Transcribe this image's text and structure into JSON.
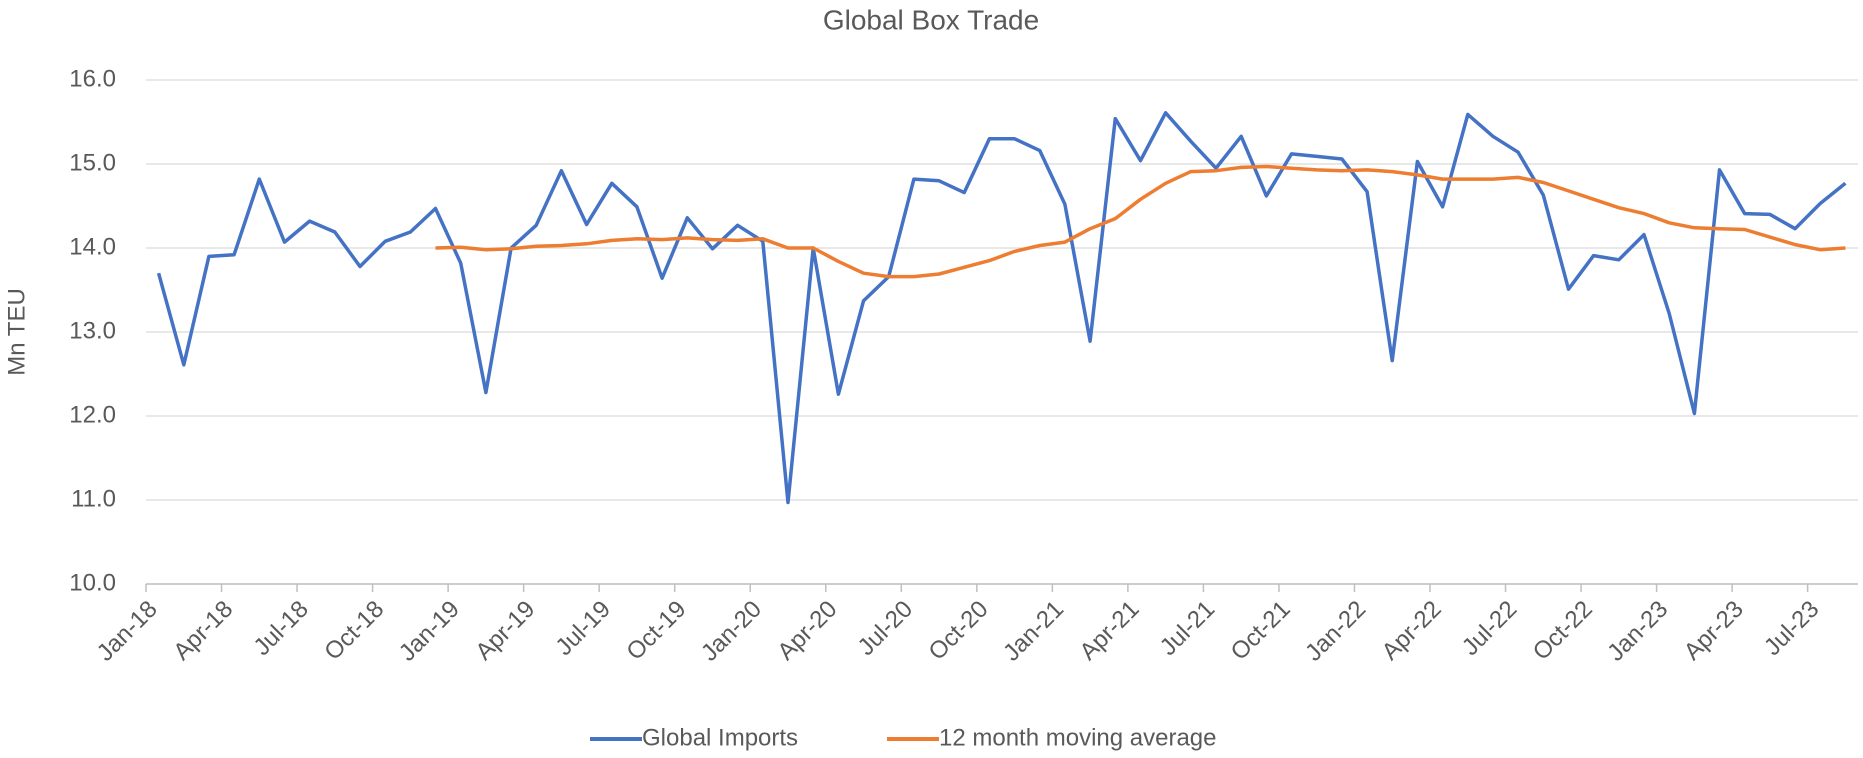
{
  "chart_data": {
    "type": "line",
    "title": "Global Box Trade",
    "y_label": "Mn TEU",
    "categories": [
      "Jan-18",
      null,
      null,
      "Apr-18",
      null,
      null,
      "Jul-18",
      null,
      null,
      "Oct-18",
      null,
      null,
      "Jan-19",
      null,
      null,
      "Apr-19",
      null,
      null,
      "Jul-19",
      null,
      null,
      "Oct-19",
      null,
      null,
      "Jan-20",
      null,
      null,
      "Apr-20",
      null,
      null,
      "Jul-20",
      null,
      null,
      "Oct-20",
      null,
      null,
      "Jan-21",
      null,
      null,
      "Apr-21",
      null,
      null,
      "Jul-21",
      null,
      null,
      "Oct-21",
      null,
      null,
      "Jan-22",
      null,
      null,
      "Apr-22",
      null,
      null,
      "Jul-22",
      null,
      null,
      "Oct-22",
      null,
      null,
      "Jan-23",
      null,
      null,
      "Apr-23",
      null,
      null,
      "Jul-23",
      null
    ],
    "series": [
      {
        "name": "Global Imports",
        "color": "#4472c4",
        "values": [
          13.7,
          12.61,
          13.9,
          13.92,
          14.82,
          14.07,
          14.32,
          14.19,
          13.78,
          14.08,
          14.19,
          14.47,
          13.82,
          12.28,
          14.0,
          14.27,
          14.92,
          14.28,
          14.77,
          14.49,
          13.64,
          14.36,
          13.99,
          14.27,
          14.08,
          10.97,
          14.0,
          12.26,
          13.37,
          13.66,
          14.82,
          14.8,
          14.66,
          15.3,
          15.3,
          15.16,
          14.52,
          12.89,
          15.54,
          15.04,
          15.61,
          15.27,
          14.95,
          15.33,
          14.62,
          15.12,
          15.09,
          15.06,
          14.67,
          12.66,
          15.03,
          14.49,
          15.59,
          15.33,
          15.14,
          14.63,
          13.51,
          13.91,
          13.86,
          14.16,
          13.22,
          12.03,
          14.93,
          14.41,
          14.4,
          14.23,
          14.53,
          14.77
        ]
      },
      {
        "name": "12 month moving average",
        "color": "#ed7d31",
        "values": [
          null,
          null,
          null,
          null,
          null,
          null,
          null,
          null,
          null,
          null,
          null,
          14.0,
          14.01,
          13.98,
          13.99,
          14.02,
          14.03,
          14.05,
          14.09,
          14.11,
          14.1,
          14.12,
          14.1,
          14.09,
          14.11,
          14.0,
          14.0,
          13.84,
          13.7,
          13.66,
          13.66,
          13.69,
          13.77,
          13.85,
          13.96,
          14.03,
          14.07,
          14.23,
          14.35,
          14.58,
          14.77,
          14.91,
          14.92,
          14.96,
          14.97,
          14.95,
          14.93,
          14.92,
          14.93,
          14.91,
          14.87,
          14.82,
          14.82,
          14.82,
          14.84,
          14.78,
          14.68,
          14.58,
          14.48,
          14.41,
          14.3,
          14.24,
          14.23,
          14.22,
          14.13,
          14.04,
          13.98,
          14.0
        ]
      }
    ],
    "ylim": [
      10,
      16
    ],
    "yticks": [
      {
        "value": 10,
        "label": "10.0"
      },
      {
        "value": 11,
        "label": "11.0"
      },
      {
        "value": 12,
        "label": "12.0"
      },
      {
        "value": 13,
        "label": "13.0"
      },
      {
        "value": 14,
        "label": "14.0"
      },
      {
        "value": 15,
        "label": "15.0"
      },
      {
        "value": 16,
        "label": "16.0"
      }
    ],
    "grid": true,
    "legend": "bottom"
  }
}
